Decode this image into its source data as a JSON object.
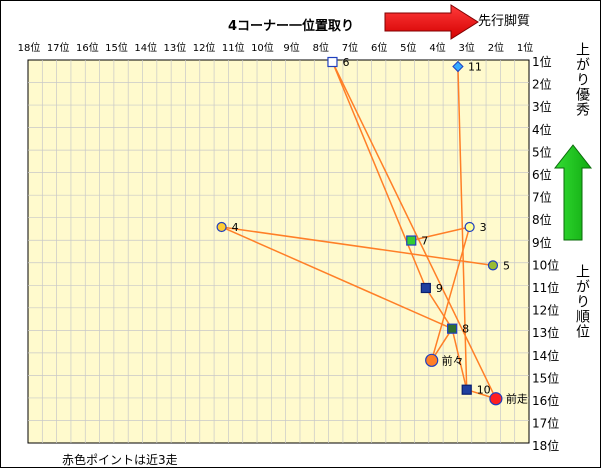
{
  "chart_data": {
    "type": "scatter",
    "title": "4コーナー一位置取り",
    "arrow_right_label": "先行脚質",
    "right_label_top": "上がり優秀",
    "right_label_bottom": "上がり順位",
    "footnote": "赤色ポイントは近3走",
    "x_ticks": [
      "18位",
      "17位",
      "16位",
      "15位",
      "14位",
      "13位",
      "12位",
      "11位",
      "10位",
      "9位",
      "8位",
      "7位",
      "6位",
      "5位",
      "4位",
      "3位",
      "2位",
      "1位"
    ],
    "y_ticks": [
      "1位",
      "2位",
      "3位",
      "4位",
      "5位",
      "6位",
      "7位",
      "8位",
      "9位",
      "10位",
      "11位",
      "12位",
      "13位",
      "14位",
      "15位",
      "16位",
      "17位",
      "18位"
    ],
    "xlim": [
      18,
      1
    ],
    "ylim": [
      1,
      18
    ],
    "grid": true,
    "plot_background": "#fffacd",
    "line_color": "#ff7f27",
    "points": [
      {
        "label": "6",
        "x": 7.6,
        "y": 1,
        "marker": "square",
        "color": "#ffffff",
        "edge": "#1f3fbf"
      },
      {
        "label": "11",
        "x": 3.3,
        "y": 1.2,
        "marker": "diamond",
        "color": "#33aaff",
        "edge": "#1f3fbf"
      },
      {
        "label": "4",
        "x": 11.4,
        "y": 8.3,
        "marker": "circle",
        "color": "#ffcc33",
        "edge": "#1f3fbf"
      },
      {
        "label": "3",
        "x": 2.9,
        "y": 8.3,
        "marker": "circle",
        "color": "#ffff99",
        "edge": "#1f3fbf"
      },
      {
        "label": "7",
        "x": 4.9,
        "y": 8.9,
        "marker": "square",
        "color": "#33cc33",
        "edge": "#1f3fbf"
      },
      {
        "label": "5",
        "x": 2.1,
        "y": 10,
        "marker": "circle",
        "color": "#99bb33",
        "edge": "#1f3fbf"
      },
      {
        "label": "9",
        "x": 4.4,
        "y": 11,
        "marker": "square",
        "color": "#1f3f9f",
        "edge": "#0a1f6f"
      },
      {
        "label": "8",
        "x": 3.5,
        "y": 12.8,
        "marker": "square",
        "color": "#2f6f2f",
        "edge": "#1f3fbf"
      },
      {
        "label": "前々",
        "x": 4.2,
        "y": 14.2,
        "marker": "circle",
        "color": "#ff7f27",
        "edge": "#1f3fbf"
      },
      {
        "label": "10",
        "x": 3.0,
        "y": 15.5,
        "marker": "square",
        "color": "#1f3f9f",
        "edge": "#0a1f6f"
      },
      {
        "label": "前走",
        "x": 2.0,
        "y": 15.9,
        "marker": "circle",
        "color": "#ff1f1f",
        "edge": "#1f3fbf"
      }
    ],
    "path_order": [
      "11",
      "10",
      "前走",
      "6",
      "9",
      "8",
      "4",
      "5"
    ],
    "path_order_2": [
      "前々",
      "3",
      "7"
    ],
    "path_order_3": [
      "前々",
      "8",
      "10"
    ]
  }
}
